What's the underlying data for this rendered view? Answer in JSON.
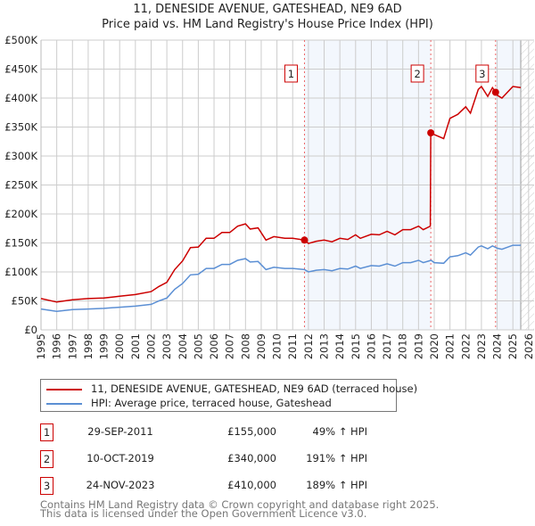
{
  "chart_data": {
    "type": "line",
    "title": "11, DENESIDE AVENUE, GATESHEAD, NE9 6AD",
    "subtitle": "Price paid vs. HM Land Registry's House Price Index (HPI)",
    "xlabel": "",
    "ylabel": "",
    "xlim": [
      1995,
      2026
    ],
    "ylim": [
      0,
      500000
    ],
    "grid": true,
    "y_ticks": [
      0,
      50000,
      100000,
      150000,
      200000,
      250000,
      300000,
      350000,
      400000,
      450000,
      500000
    ],
    "y_tick_labels": [
      "£0",
      "£50K",
      "£100K",
      "£150K",
      "£200K",
      "£250K",
      "£300K",
      "£350K",
      "£400K",
      "£450K",
      "£500K"
    ],
    "x_ticks": [
      1995,
      1996,
      1997,
      1998,
      1999,
      2000,
      2001,
      2002,
      2003,
      2004,
      2005,
      2006,
      2007,
      2008,
      2009,
      2010,
      2011,
      2012,
      2013,
      2014,
      2015,
      2016,
      2017,
      2018,
      2019,
      2020,
      2021,
      2022,
      2023,
      2024,
      2025,
      2026
    ],
    "x_tick_labels": [
      "1995",
      "1996",
      "1997",
      "1998",
      "1999",
      "2000",
      "2001",
      "2002",
      "2003",
      "2004",
      "2005",
      "2006",
      "2007",
      "2008",
      "2009",
      "2010",
      "2011",
      "2012",
      "2013",
      "2014",
      "2015",
      "2016",
      "2017",
      "2018",
      "2019",
      "2020",
      "2021",
      "2022",
      "2023",
      "2024",
      "2025",
      "2026"
    ],
    "shaded_ranges": [
      [
        2011.75,
        2019.78
      ],
      [
        2023.9,
        2025.5
      ]
    ],
    "hatched_range": [
      2025.5,
      2026
    ],
    "series": [
      {
        "name": "11, DENESIDE AVENUE, GATESHEAD, NE9 6AD (terraced house)",
        "color": "#cc0000",
        "x": [
          1995,
          1996,
          1997,
          1998,
          1999,
          2000,
          2001,
          2002,
          2002.5,
          2003,
          2003.5,
          2004,
          2004.5,
          2005,
          2005.5,
          2006,
          2006.5,
          2007,
          2007.5,
          2008,
          2008.3,
          2008.8,
          2009.3,
          2009.8,
          2010.5,
          2011,
          2011.75,
          2012,
          2012.5,
          2013,
          2013.5,
          2014,
          2014.5,
          2015,
          2015.3,
          2016,
          2016.5,
          2017,
          2017.5,
          2018,
          2018.5,
          2019,
          2019.3,
          2019.75,
          2019.78,
          2020,
          2020.6,
          2021,
          2021.5,
          2022,
          2022.3,
          2022.8,
          2023,
          2023.4,
          2023.7,
          2023.9,
          2024,
          2024.3,
          2025,
          2025.5
        ],
        "y": [
          54000,
          48000,
          52000,
          54000,
          55000,
          58000,
          61000,
          66000,
          75000,
          82000,
          104000,
          119000,
          142000,
          143000,
          158000,
          158000,
          168000,
          168000,
          179000,
          183000,
          174000,
          176000,
          155000,
          161000,
          158000,
          158000,
          155000,
          149000,
          153000,
          155000,
          152000,
          158000,
          156000,
          164000,
          158000,
          165000,
          164000,
          170000,
          164000,
          173000,
          173000,
          179000,
          173000,
          179000,
          340000,
          337000,
          330000,
          365000,
          372000,
          385000,
          374000,
          415000,
          420000,
          403000,
          418000,
          410000,
          405000,
          400000,
          420000,
          418000
        ]
      },
      {
        "name": "HPI: Average price, terraced house, Gateshead",
        "color": "#5b8fd4",
        "x": [
          1995,
          1996,
          1997,
          1998,
          1999,
          2000,
          2001,
          2002,
          2002.5,
          2003,
          2003.5,
          2004,
          2004.5,
          2005,
          2005.5,
          2006,
          2006.5,
          2007,
          2007.5,
          2008,
          2008.3,
          2008.8,
          2009.3,
          2009.8,
          2010.5,
          2011,
          2011.75,
          2012,
          2012.5,
          2013,
          2013.5,
          2014,
          2014.5,
          2015,
          2015.3,
          2016,
          2016.5,
          2017,
          2017.5,
          2018,
          2018.5,
          2019,
          2019.3,
          2019.8,
          2020,
          2020.6,
          2021,
          2021.5,
          2022,
          2022.3,
          2022.8,
          2023,
          2023.4,
          2023.7,
          2024,
          2024.3,
          2025,
          2025.5
        ],
        "y": [
          36000,
          32000,
          35000,
          36000,
          37000,
          39000,
          41000,
          44000,
          50000,
          55000,
          70000,
          80000,
          95000,
          96000,
          106000,
          106000,
          113000,
          113000,
          120000,
          123000,
          117000,
          118000,
          104000,
          108000,
          106000,
          106000,
          104000,
          100000,
          103000,
          104000,
          102000,
          106000,
          105000,
          110000,
          106000,
          111000,
          110000,
          114000,
          110000,
          116000,
          116000,
          120000,
          116000,
          120000,
          116000,
          115000,
          126000,
          128000,
          133000,
          129000,
          143000,
          145000,
          140000,
          145000,
          141000,
          139000,
          146000,
          146000
        ]
      }
    ],
    "sales": [
      {
        "label": "1",
        "x": 2011.75,
        "y": 155000
      },
      {
        "label": "2",
        "x": 2019.78,
        "y": 340000
      },
      {
        "label": "3",
        "x": 2023.9,
        "y": 410000
      }
    ]
  },
  "legend": {
    "property": "11, DENESIDE AVENUE, GATESHEAD, NE9 6AD (terraced house)",
    "hpi": "HPI: Average price, terraced house, Gateshead"
  },
  "transactions": [
    {
      "num": "1",
      "date": "29-SEP-2011",
      "price": "£155,000",
      "hpi": "49% ↑ HPI"
    },
    {
      "num": "2",
      "date": "10-OCT-2019",
      "price": "£340,000",
      "hpi": "191% ↑ HPI"
    },
    {
      "num": "3",
      "date": "24-NOV-2023",
      "price": "£410,000",
      "hpi": "189% ↑ HPI"
    }
  ],
  "footer": {
    "line1": "Contains HM Land Registry data © Crown copyright and database right 2025.",
    "line2": "This data is licensed under the Open Government Licence v3.0."
  }
}
